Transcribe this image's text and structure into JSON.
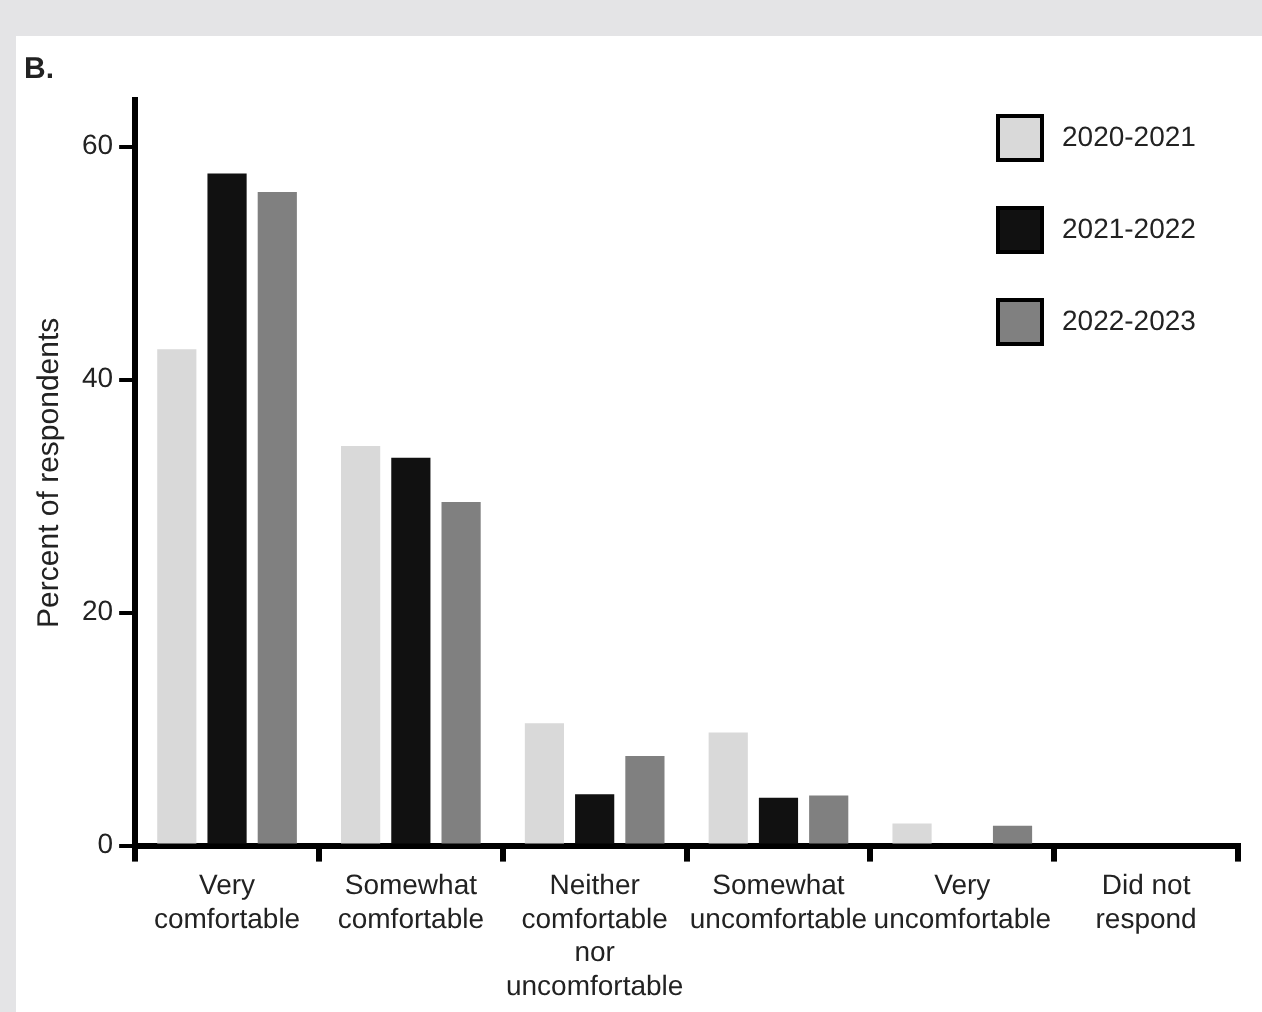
{
  "chart_data": {
    "type": "bar",
    "title": "B.",
    "ylabel": "Percent of respondents",
    "categories": [
      "Very comfortable",
      "Somewhat comfortable",
      "Neither comfortable nor uncomfortable",
      "Somewhat uncomfortable",
      "Very uncomfortable",
      "Did not respond"
    ],
    "series": [
      {
        "name": "2020-2021",
        "color": "#d9d9d9",
        "values": [
          42.6,
          34.3,
          10.5,
          9.7,
          1.9,
          null
        ]
      },
      {
        "name": "2021-2022",
        "color": "#111111",
        "values": [
          57.7,
          33.3,
          4.4,
          4.1,
          0.2,
          0
        ]
      },
      {
        "name": "2022-2023",
        "color": "#808080",
        "values": [
          56.1,
          29.5,
          7.7,
          4.3,
          1.7,
          0
        ]
      }
    ],
    "ylim": [
      0,
      64
    ],
    "yticks": [
      0,
      20,
      40,
      60
    ],
    "grid": false,
    "legend": "top right"
  }
}
